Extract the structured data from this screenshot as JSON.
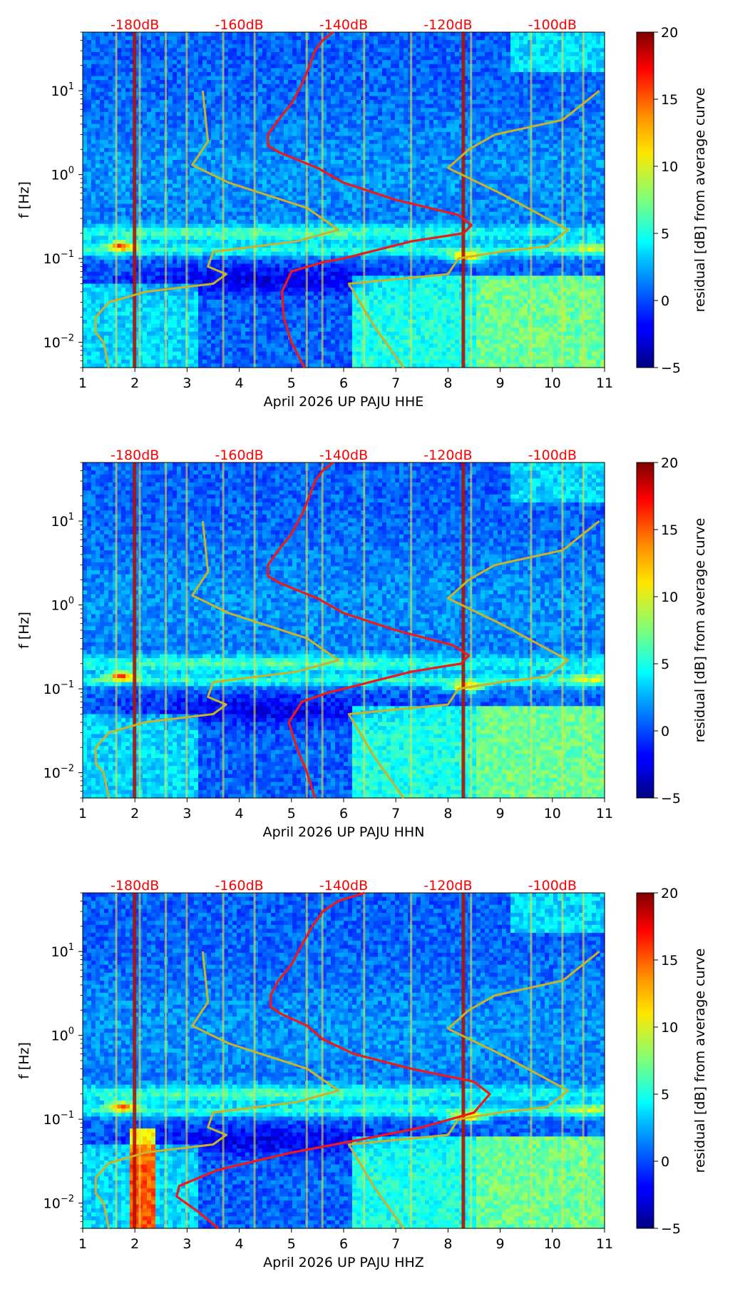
{
  "figure": {
    "xlim": [
      1,
      11
    ],
    "ylim_hz": [
      0.005,
      50
    ],
    "x_ticks": [
      "1",
      "2",
      "3",
      "4",
      "5",
      "6",
      "7",
      "8",
      "9",
      "10",
      "11"
    ],
    "y_ticks": [
      {
        "base": "10",
        "exp": "−2",
        "value": 0.01
      },
      {
        "base": "10",
        "exp": "−1",
        "value": 0.1
      },
      {
        "base": "10",
        "exp": "0",
        "value": 1
      },
      {
        "base": "10",
        "exp": "1",
        "value": 10
      }
    ],
    "db_labels": [
      "-180dB",
      "-160dB",
      "-140dB",
      "-120dB",
      "-100dB"
    ],
    "colorbar": {
      "label": "residual [dB] from average curve",
      "ticks": [
        "20",
        "15",
        "10",
        "5",
        "0",
        "−5"
      ],
      "range": [
        -5,
        20
      ]
    },
    "colors": {
      "red_curve": "#ee1a1a",
      "yellow_curve": "#c9b22c",
      "db_label": "#ff0000"
    }
  },
  "chart_data": [
    {
      "type": "heatmap",
      "title": "",
      "xlabel": "April 2026 UP PAJU  HHE",
      "ylabel": "f [Hz]",
      "xlim": [
        1,
        11
      ],
      "ylim": [
        0.005,
        50
      ],
      "yscale": "log",
      "series": [
        {
          "name": "average PSD curve (red)",
          "x": [
            5.25,
            5.0,
            4.85,
            4.82,
            5.0,
            5.6,
            6.0,
            6.5,
            7.3,
            8.3,
            8.45,
            8.2,
            7.0,
            6.0,
            5.5,
            4.8,
            4.55,
            4.55,
            4.75,
            5.0,
            5.2,
            5.35,
            5.45,
            5.6,
            5.8
          ],
          "f": [
            0.005,
            0.01,
            0.02,
            0.04,
            0.07,
            0.09,
            0.1,
            0.12,
            0.16,
            0.2,
            0.25,
            0.33,
            0.5,
            0.8,
            1.2,
            1.8,
            2.2,
            3.0,
            4.5,
            7.0,
            12.0,
            20.0,
            30.0,
            40.0,
            50.0
          ]
        },
        {
          "name": "low noise model (yellow)",
          "x": [
            1.5,
            1.4,
            1.25,
            1.25,
            1.5,
            2.2,
            3.5,
            3.75,
            3.4,
            3.5,
            5.1,
            5.9,
            5.3,
            3.8,
            3.1,
            3.4,
            3.3
          ],
          "f": [
            0.005,
            0.01,
            0.013,
            0.02,
            0.03,
            0.04,
            0.05,
            0.065,
            0.08,
            0.12,
            0.16,
            0.22,
            0.4,
            0.8,
            1.3,
            2.5,
            10.0
          ]
        },
        {
          "name": "high noise model (yellow)",
          "x": [
            7.15,
            6.6,
            6.1,
            8.0,
            8.2,
            9.0,
            9.9,
            10.3,
            9.7,
            9.0,
            8.0,
            8.4,
            8.9,
            10.2,
            10.9
          ],
          "f": [
            0.005,
            0.015,
            0.05,
            0.065,
            0.1,
            0.12,
            0.14,
            0.22,
            0.35,
            0.6,
            1.2,
            2.0,
            3.0,
            4.5,
            10.0
          ]
        }
      ]
    },
    {
      "type": "heatmap",
      "title": "",
      "xlabel": "April 2026 UP PAJU  HHN",
      "ylabel": "f [Hz]",
      "xlim": [
        1,
        11
      ],
      "ylim": [
        0.005,
        50
      ],
      "yscale": "log",
      "series": [
        {
          "name": "average PSD curve (red)",
          "x": [
            5.45,
            5.3,
            5.1,
            4.95,
            5.2,
            5.7,
            6.0,
            6.5,
            7.3,
            8.25,
            8.4,
            8.1,
            7.0,
            6.0,
            5.5,
            4.8,
            4.55,
            4.55,
            4.75,
            5.0,
            5.2,
            5.35,
            5.45,
            5.6,
            5.8
          ],
          "f": [
            0.005,
            0.01,
            0.02,
            0.04,
            0.07,
            0.09,
            0.1,
            0.12,
            0.16,
            0.2,
            0.25,
            0.33,
            0.5,
            0.8,
            1.2,
            1.8,
            2.2,
            3.0,
            4.5,
            7.0,
            12.0,
            20.0,
            30.0,
            40.0,
            50.0
          ]
        },
        {
          "name": "low noise model (yellow)",
          "x": [
            1.5,
            1.4,
            1.25,
            1.25,
            1.5,
            2.2,
            3.5,
            3.75,
            3.4,
            3.5,
            5.1,
            5.9,
            5.3,
            3.8,
            3.1,
            3.4,
            3.3
          ],
          "f": [
            0.005,
            0.01,
            0.013,
            0.02,
            0.03,
            0.04,
            0.05,
            0.065,
            0.08,
            0.12,
            0.16,
            0.22,
            0.4,
            0.8,
            1.3,
            2.5,
            10.0
          ]
        },
        {
          "name": "high noise model (yellow)",
          "x": [
            7.15,
            6.6,
            6.1,
            8.0,
            8.2,
            9.0,
            9.9,
            10.3,
            9.7,
            9.0,
            8.0,
            8.4,
            8.9,
            10.2,
            10.9
          ],
          "f": [
            0.005,
            0.015,
            0.05,
            0.065,
            0.1,
            0.12,
            0.14,
            0.22,
            0.35,
            0.6,
            1.2,
            2.0,
            3.0,
            4.5,
            10.0
          ]
        }
      ]
    },
    {
      "type": "heatmap",
      "title": "",
      "xlabel": "April 2026 UP PAJU  HHZ",
      "ylabel": "f [Hz]",
      "xlim": [
        1,
        11
      ],
      "ylim": [
        0.005,
        50
      ],
      "yscale": "log",
      "series": [
        {
          "name": "average PSD curve (red)",
          "x": [
            3.6,
            3.2,
            2.8,
            2.85,
            3.6,
            5.0,
            6.5,
            7.5,
            8.5,
            8.8,
            8.5,
            7.3,
            6.2,
            5.6,
            5.3,
            4.8,
            4.6,
            4.6,
            4.75,
            5.0,
            5.2,
            5.4,
            5.6,
            5.9,
            6.4
          ],
          "f": [
            0.005,
            0.008,
            0.012,
            0.016,
            0.025,
            0.04,
            0.06,
            0.08,
            0.12,
            0.2,
            0.28,
            0.4,
            0.6,
            0.9,
            1.3,
            1.8,
            2.2,
            3.0,
            4.5,
            7.0,
            12.0,
            20.0,
            30.0,
            40.0,
            50.0
          ]
        },
        {
          "name": "low noise model (yellow)",
          "x": [
            1.5,
            1.4,
            1.25,
            1.25,
            1.5,
            2.2,
            3.5,
            3.75,
            3.4,
            3.5,
            5.1,
            5.9,
            5.3,
            3.8,
            3.1,
            3.4,
            3.3
          ],
          "f": [
            0.005,
            0.01,
            0.013,
            0.02,
            0.03,
            0.04,
            0.05,
            0.065,
            0.08,
            0.12,
            0.16,
            0.22,
            0.4,
            0.8,
            1.3,
            2.5,
            10.0
          ]
        },
        {
          "name": "high noise model (yellow)",
          "x": [
            7.15,
            6.6,
            6.1,
            8.0,
            8.2,
            9.0,
            9.9,
            10.3,
            9.7,
            9.0,
            8.0,
            8.4,
            8.9,
            10.2,
            10.9
          ],
          "f": [
            0.005,
            0.015,
            0.05,
            0.065,
            0.1,
            0.12,
            0.14,
            0.22,
            0.35,
            0.6,
            1.2,
            2.0,
            3.0,
            4.5,
            10.0
          ]
        }
      ]
    }
  ]
}
